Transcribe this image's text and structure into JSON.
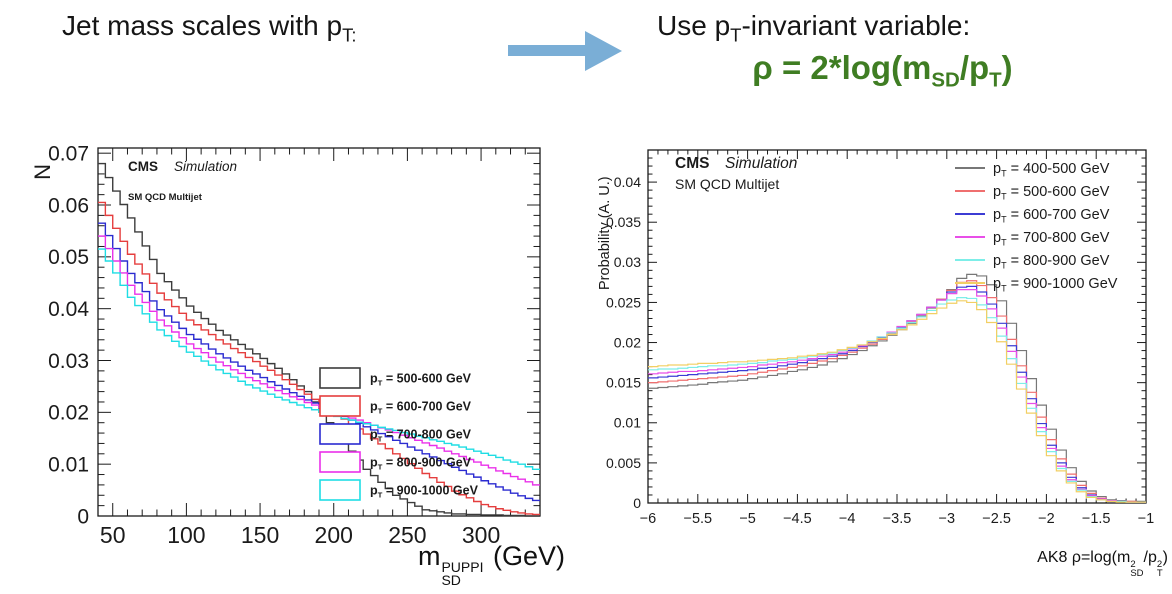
{
  "header": {
    "left_title_pre": "Jet mass scales with p",
    "left_title_sub": "T:",
    "right_title_pre": "Use p",
    "right_title_sub": "T",
    "right_title_post": "-invariant variable:",
    "formula": {
      "pre": "ρ = 2*log(m",
      "sub1": "SD",
      "mid": "/p",
      "sub2": "T",
      "post": ")"
    }
  },
  "colors": {
    "formula_green": "#3f7d23",
    "arrow_blue": "#7aaed6",
    "axis": "#1b1b1b"
  },
  "chart_data": [
    {
      "type": "line",
      "style": "histogram-step",
      "texts": {
        "experiment": "CMS",
        "mode": "Simulation",
        "sample": "SM QCD Multijet"
      },
      "ylabel": "N",
      "xlabel_parts": {
        "base": "m",
        "sup": "PUPPI",
        "sub": "SD",
        "rest": " (GeV)"
      },
      "xlim": [
        40,
        340
      ],
      "ylim": [
        0,
        0.071
      ],
      "bin_start": 40,
      "bin_width": 5,
      "x_ticks": {
        "values": [
          50,
          100,
          150,
          200,
          250,
          300
        ],
        "labels": [
          "50",
          "100",
          "150",
          "200",
          "250",
          "300"
        ],
        "minor_step": 10
      },
      "y_ticks": {
        "values": [
          0,
          0.01,
          0.02,
          0.03,
          0.04,
          0.05,
          0.06,
          0.07
        ],
        "labels": [
          "0",
          "0.01",
          "0.02",
          "0.03",
          "0.04",
          "0.05",
          "0.06",
          "0.07"
        ],
        "minor_step": 0.002
      },
      "legend_marker": "box",
      "legend_position": "middle-right",
      "series": [
        {
          "name": "p_T = 500-600 GeV",
          "color": "#3c3c3c",
          "values": [
            0.068,
            0.0653,
            0.0627,
            0.0601,
            0.0575,
            0.0548,
            0.0521,
            0.0495,
            0.0468,
            0.0452,
            0.0436,
            0.0421,
            0.0405,
            0.0393,
            0.0381,
            0.037,
            0.0358,
            0.0349,
            0.034,
            0.0331,
            0.0322,
            0.0313,
            0.0304,
            0.0294,
            0.0285,
            0.0274,
            0.0263,
            0.0251,
            0.024,
            0.022,
            0.02,
            0.018,
            0.016,
            0.0143,
            0.0125,
            0.0108,
            0.009,
            0.0078,
            0.0065,
            0.0053,
            0.004,
            0.0033,
            0.0026,
            0.0019,
            0.0012,
            0.001,
            0.0008,
            0.0006,
            0.0004,
            0.0004,
            0.0003,
            0.0003,
            0.0002,
            0.0002,
            0.0002,
            0.0001,
            0.0001,
            0.0001,
            0.0,
            0.0
          ]
        },
        {
          "name": "p_T = 600-700 GeV",
          "color": "#e53e3e",
          "values": [
            0.0605,
            0.058,
            0.0555,
            0.053,
            0.0505,
            0.0486,
            0.0467,
            0.0449,
            0.043,
            0.0417,
            0.0404,
            0.0391,
            0.0378,
            0.0369,
            0.0359,
            0.035,
            0.034,
            0.0332,
            0.0323,
            0.0315,
            0.0306,
            0.0298,
            0.0289,
            0.0281,
            0.0272,
            0.0263,
            0.0254,
            0.0244,
            0.0235,
            0.0225,
            0.0216,
            0.0206,
            0.0196,
            0.0187,
            0.0177,
            0.0168,
            0.0158,
            0.0149,
            0.0139,
            0.013,
            0.012,
            0.0111,
            0.0101,
            0.0092,
            0.0082,
            0.0074,
            0.0065,
            0.0057,
            0.0048,
            0.0041,
            0.0035,
            0.0028,
            0.0022,
            0.0018,
            0.0014,
            0.0011,
            0.0008,
            0.0006,
            0.0004,
            0.0003
          ]
        },
        {
          "name": "p_T = 700-800 GeV",
          "color": "#2b2bd0",
          "values": [
            0.0565,
            0.0541,
            0.0516,
            0.0492,
            0.0468,
            0.045,
            0.0433,
            0.0415,
            0.0398,
            0.0386,
            0.0374,
            0.0362,
            0.035,
            0.0341,
            0.0332,
            0.0322,
            0.0313,
            0.0305,
            0.0297,
            0.0289,
            0.0281,
            0.0274,
            0.0267,
            0.0259,
            0.0252,
            0.0245,
            0.0238,
            0.0231,
            0.0224,
            0.0218,
            0.0211,
            0.0205,
            0.0198,
            0.0192,
            0.0185,
            0.0179,
            0.0172,
            0.0166,
            0.0159,
            0.0153,
            0.0146,
            0.014,
            0.0133,
            0.0127,
            0.012,
            0.0114,
            0.0107,
            0.0101,
            0.0094,
            0.0088,
            0.0081,
            0.0075,
            0.0068,
            0.0062,
            0.0056,
            0.005,
            0.0044,
            0.0039,
            0.0034,
            0.003
          ]
        },
        {
          "name": "p_T = 800-900 GeV",
          "color": "#ea30ea",
          "values": [
            0.054,
            0.0516,
            0.0492,
            0.0469,
            0.0445,
            0.0428,
            0.0412,
            0.0395,
            0.0378,
            0.0367,
            0.0355,
            0.0344,
            0.0332,
            0.0323,
            0.0315,
            0.0306,
            0.0297,
            0.029,
            0.0282,
            0.0275,
            0.0267,
            0.0261,
            0.0255,
            0.0248,
            0.0242,
            0.0236,
            0.023,
            0.0225,
            0.0219,
            0.0214,
            0.0209,
            0.0204,
            0.0199,
            0.0194,
            0.0189,
            0.0185,
            0.018,
            0.0175,
            0.017,
            0.0166,
            0.0161,
            0.0156,
            0.0151,
            0.0146,
            0.0141,
            0.0136,
            0.0131,
            0.0125,
            0.012,
            0.0115,
            0.0109,
            0.0104,
            0.0098,
            0.0093,
            0.0087,
            0.0082,
            0.0076,
            0.0071,
            0.0066,
            0.006
          ]
        },
        {
          "name": "p_T = 900-1000 GeV",
          "color": "#1fdde4",
          "values": [
            0.0515,
            0.0492,
            0.0469,
            0.0445,
            0.0422,
            0.0406,
            0.039,
            0.0374,
            0.0359,
            0.0348,
            0.0337,
            0.0327,
            0.0316,
            0.0308,
            0.0299,
            0.0291,
            0.0282,
            0.0275,
            0.0268,
            0.026,
            0.0253,
            0.0247,
            0.0241,
            0.0235,
            0.0229,
            0.0224,
            0.0219,
            0.0214,
            0.0209,
            0.0205,
            0.02,
            0.0196,
            0.0192,
            0.0188,
            0.0185,
            0.0181,
            0.0178,
            0.0175,
            0.0171,
            0.0168,
            0.0165,
            0.0161,
            0.0158,
            0.0154,
            0.0151,
            0.0147,
            0.0144,
            0.014,
            0.0137,
            0.0133,
            0.0129,
            0.0125,
            0.0121,
            0.0117,
            0.0113,
            0.0108,
            0.0104,
            0.01,
            0.0095,
            0.009
          ]
        }
      ]
    },
    {
      "type": "line",
      "style": "histogram-step",
      "texts": {
        "experiment": "CMS",
        "mode": "Simulation",
        "sample": "SM QCD Multijet"
      },
      "ylabel": "Probability (A. U.)",
      "xlabel_parts": {
        "pre": "AK8 ρ=log(m",
        "sup1": "2",
        "sub1": "SD",
        "mid": "/p",
        "sup2": "2",
        "sub2": "T",
        "post": ")"
      },
      "xlim": [
        -6,
        -1
      ],
      "ylim": [
        0,
        0.044
      ],
      "bin_start": -6,
      "bin_width": 0.1,
      "x_ticks": {
        "values": [
          -6,
          -5.5,
          -5,
          -4.5,
          -4,
          -3.5,
          -3,
          -2.5,
          -2,
          -1.5,
          -1
        ],
        "labels": [
          "−6",
          "−5.5",
          "−5",
          "−4.5",
          "−4",
          "−3.5",
          "−3",
          "−2.5",
          "−2",
          "−1.5",
          "−1"
        ],
        "minor_step": 0.1
      },
      "y_ticks": {
        "values": [
          0,
          0.005,
          0.01,
          0.015,
          0.02,
          0.025,
          0.03,
          0.035,
          0.04
        ],
        "labels": [
          "0",
          "0.005",
          "0.01",
          "0.015",
          "0.02",
          "0.025",
          "0.03",
          "0.035",
          "0.04"
        ],
        "minor_step": 0.001
      },
      "legend_marker": "line",
      "legend_position": "top-right",
      "series": [
        {
          "name": "p_T = 400-500 GeV",
          "color": "#777777",
          "values": [
            0.0143,
            0.0144,
            0.0145,
            0.0146,
            0.0147,
            0.0148,
            0.015,
            0.0151,
            0.0152,
            0.0153,
            0.0155,
            0.0157,
            0.0159,
            0.0161,
            0.0164,
            0.0166,
            0.0169,
            0.0172,
            0.0176,
            0.018,
            0.0185,
            0.019,
            0.0196,
            0.0202,
            0.0209,
            0.0216,
            0.0224,
            0.0233,
            0.0243,
            0.0254,
            0.0266,
            0.028,
            0.0285,
            0.0283,
            0.0272,
            0.0252,
            0.0224,
            0.019,
            0.0155,
            0.0122,
            0.0092,
            0.0066,
            0.0044,
            0.0027,
            0.0015,
            0.0008,
            0.0004,
            0.0003,
            0.0002,
            0.0002
          ]
        },
        {
          "name": "p_T = 500-600 GeV",
          "color": "#ef6f6f",
          "values": [
            0.015,
            0.0151,
            0.0152,
            0.0153,
            0.0154,
            0.0155,
            0.0156,
            0.0157,
            0.0158,
            0.0159,
            0.0161,
            0.0163,
            0.0165,
            0.0167,
            0.0169,
            0.0171,
            0.0174,
            0.0177,
            0.018,
            0.0184,
            0.0188,
            0.0193,
            0.0198,
            0.0204,
            0.0211,
            0.0218,
            0.0226,
            0.0235,
            0.0244,
            0.0254,
            0.0265,
            0.0275,
            0.0277,
            0.0271,
            0.0256,
            0.0233,
            0.0204,
            0.0171,
            0.0138,
            0.0107,
            0.0079,
            0.0055,
            0.0036,
            0.0022,
            0.0012,
            0.0006,
            0.0003,
            0.0002,
            0.0002,
            0.0001
          ]
        },
        {
          "name": "p_T = 600-700 GeV",
          "color": "#3c3cd4",
          "values": [
            0.0156,
            0.0157,
            0.0158,
            0.0159,
            0.016,
            0.0161,
            0.0162,
            0.0163,
            0.0164,
            0.0165,
            0.0166,
            0.0168,
            0.0169,
            0.0171,
            0.0173,
            0.0175,
            0.0178,
            0.018,
            0.0183,
            0.0186,
            0.019,
            0.0195,
            0.02,
            0.0206,
            0.0212,
            0.0219,
            0.0227,
            0.0235,
            0.0244,
            0.0253,
            0.0263,
            0.0269,
            0.027,
            0.0263,
            0.0248,
            0.0224,
            0.0196,
            0.0163,
            0.013,
            0.0099,
            0.0072,
            0.005,
            0.0032,
            0.0019,
            0.001,
            0.0005,
            0.0003,
            0.0002,
            0.0001,
            0.0001
          ]
        },
        {
          "name": "p_T = 700-800 GeV",
          "color": "#e84fe8",
          "values": [
            0.0161,
            0.0162,
            0.0163,
            0.0164,
            0.0164,
            0.0165,
            0.0166,
            0.0167,
            0.0168,
            0.0169,
            0.017,
            0.0172,
            0.0173,
            0.0175,
            0.0176,
            0.0178,
            0.018,
            0.0183,
            0.0185,
            0.0188,
            0.0192,
            0.0196,
            0.0201,
            0.0207,
            0.0213,
            0.022,
            0.0227,
            0.0235,
            0.0244,
            0.0253,
            0.0261,
            0.0266,
            0.0266,
            0.0258,
            0.0242,
            0.0218,
            0.0189,
            0.0157,
            0.0124,
            0.0094,
            0.0068,
            0.0046,
            0.0029,
            0.0017,
            0.0009,
            0.0005,
            0.0003,
            0.0002,
            0.0001,
            0.0001
          ]
        },
        {
          "name": "p_T = 800-900 GeV",
          "color": "#7deee8",
          "values": [
            0.0166,
            0.0167,
            0.0167,
            0.0168,
            0.0169,
            0.017,
            0.0171,
            0.0171,
            0.0172,
            0.0173,
            0.0174,
            0.0175,
            0.0177,
            0.0178,
            0.0179,
            0.0181,
            0.0183,
            0.0185,
            0.0187,
            0.019,
            0.0193,
            0.0197,
            0.0202,
            0.0207,
            0.0212,
            0.0218,
            0.0225,
            0.0232,
            0.024,
            0.0248,
            0.0253,
            0.0256,
            0.0255,
            0.0247,
            0.0231,
            0.0208,
            0.018,
            0.0149,
            0.0118,
            0.0089,
            0.0064,
            0.0043,
            0.0027,
            0.0016,
            0.0008,
            0.0004,
            0.0002,
            0.0002,
            0.0001,
            0.0001
          ]
        },
        {
          "name": "p_T = 900-1000 GeV",
          "color": "#f2cf63",
          "values": [
            0.017,
            0.0171,
            0.0172,
            0.0172,
            0.0173,
            0.0174,
            0.0174,
            0.0175,
            0.0176,
            0.0176,
            0.0177,
            0.0178,
            0.0179,
            0.018,
            0.0181,
            0.0183,
            0.0184,
            0.0186,
            0.0188,
            0.0191,
            0.0194,
            0.0197,
            0.0201,
            0.0205,
            0.021,
            0.0216,
            0.0222,
            0.0229,
            0.0236,
            0.0243,
            0.0249,
            0.0252,
            0.025,
            0.0241,
            0.0225,
            0.0201,
            0.0173,
            0.0142,
            0.0112,
            0.0084,
            0.0059,
            0.004,
            0.0025,
            0.0014,
            0.0007,
            0.0004,
            0.0002,
            0.0001,
            0.0001,
            0.0001
          ]
        }
      ]
    }
  ]
}
